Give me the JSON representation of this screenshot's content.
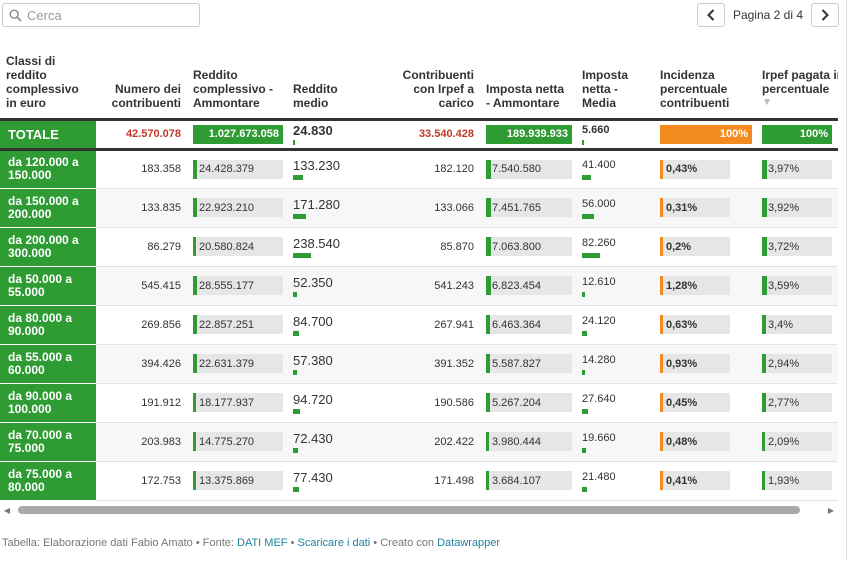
{
  "search": {
    "placeholder": "Cerca"
  },
  "pager": {
    "label": "Pagina 2 di 4"
  },
  "headers": {
    "classi": "Classi di reddito complessivo in euro",
    "numero": "Numero dei contribuenti",
    "reddito_ammontare": "Reddito complessivo - Ammontare",
    "reddito_medio": "Reddito medio",
    "contribuenti_irpef": "Contribuenti con Irpef a carico",
    "imposta_ammontare": "Imposta netta - Ammontare",
    "imposta_media": "Imposta netta - Media",
    "incidenza": "Incidenza percentuale contribuenti",
    "irpef_pagata": "Irpef pagata in percentuale",
    "sort_indicator": "▼"
  },
  "total": {
    "classe": "TOTALE",
    "numero": "42.570.078",
    "reddito_ammontare": "1.027.673.058",
    "reddito_medio": "24.830",
    "contribuenti_irpef": "33.540.428",
    "imposta_ammontare": "189.939.933",
    "imposta_media": "5.660",
    "incidenza": "100%",
    "irpef_pagata": "100%"
  },
  "rows": [
    {
      "classe": "da 120.000 a 150.000",
      "numero": "183.358",
      "reddito_ammontare": "24.428.379",
      "reddito_ammontare_frac": 0.024,
      "reddito_medio": "133.230",
      "reddito_medio_frac": 0.56,
      "contribuenti_irpef": "182.120",
      "imposta_ammontare": "7.540.580",
      "imposta_ammontare_frac": 0.04,
      "imposta_media": "41.400",
      "imposta_media_frac": 0.5,
      "incidenza": "0,43%",
      "incidenza_frac": 0.0043,
      "irpef_pagata": "3,97%",
      "irpef_pagata_frac": 0.0397
    },
    {
      "classe": "da 150.000 a 200.000",
      "numero": "133.835",
      "reddito_ammontare": "22.923.210",
      "reddito_ammontare_frac": 0.022,
      "reddito_medio": "171.280",
      "reddito_medio_frac": 0.72,
      "contribuenti_irpef": "133.066",
      "imposta_ammontare": "7.451.765",
      "imposta_ammontare_frac": 0.039,
      "imposta_media": "56.000",
      "imposta_media_frac": 0.68,
      "incidenza": "0,31%",
      "incidenza_frac": 0.0031,
      "irpef_pagata": "3,92%",
      "irpef_pagata_frac": 0.0392
    },
    {
      "classe": "da 200.000 a 300.000",
      "numero": "86.279",
      "reddito_ammontare": "20.580.824",
      "reddito_ammontare_frac": 0.02,
      "reddito_medio": "238.540",
      "reddito_medio_frac": 1.0,
      "contribuenti_irpef": "85.870",
      "imposta_ammontare": "7.063.800",
      "imposta_ammontare_frac": 0.037,
      "imposta_media": "82.260",
      "imposta_media_frac": 1.0,
      "incidenza": "0,2%",
      "incidenza_frac": 0.002,
      "irpef_pagata": "3,72%",
      "irpef_pagata_frac": 0.0372
    },
    {
      "classe": "da 50.000 a 55.000",
      "numero": "545.415",
      "reddito_ammontare": "28.555.177",
      "reddito_ammontare_frac": 0.028,
      "reddito_medio": "52.350",
      "reddito_medio_frac": 0.22,
      "contribuenti_irpef": "541.243",
      "imposta_ammontare": "6.823.454",
      "imposta_ammontare_frac": 0.036,
      "imposta_media": "12.610",
      "imposta_media_frac": 0.15,
      "incidenza": "1,28%",
      "incidenza_frac": 0.0128,
      "irpef_pagata": "3,59%",
      "irpef_pagata_frac": 0.0359
    },
    {
      "classe": "da 80.000 a 90.000",
      "numero": "269.856",
      "reddito_ammontare": "22.857.251",
      "reddito_ammontare_frac": 0.022,
      "reddito_medio": "84.700",
      "reddito_medio_frac": 0.36,
      "contribuenti_irpef": "267.941",
      "imposta_ammontare": "6.463.364",
      "imposta_ammontare_frac": 0.034,
      "imposta_media": "24.120",
      "imposta_media_frac": 0.29,
      "incidenza": "0,63%",
      "incidenza_frac": 0.0063,
      "irpef_pagata": "3,4%",
      "irpef_pagata_frac": 0.034
    },
    {
      "classe": "da 55.000 a 60.000",
      "numero": "394.426",
      "reddito_ammontare": "22.631.379",
      "reddito_ammontare_frac": 0.022,
      "reddito_medio": "57.380",
      "reddito_medio_frac": 0.24,
      "contribuenti_irpef": "391.352",
      "imposta_ammontare": "5.587.827",
      "imposta_ammontare_frac": 0.029,
      "imposta_media": "14.280",
      "imposta_media_frac": 0.17,
      "incidenza": "0,93%",
      "incidenza_frac": 0.0093,
      "irpef_pagata": "2,94%",
      "irpef_pagata_frac": 0.0294
    },
    {
      "classe": "da 90.000 a 100.000",
      "numero": "191.912",
      "reddito_ammontare": "18.177.937",
      "reddito_ammontare_frac": 0.018,
      "reddito_medio": "94.720",
      "reddito_medio_frac": 0.4,
      "contribuenti_irpef": "190.586",
      "imposta_ammontare": "5.267.204",
      "imposta_ammontare_frac": 0.028,
      "imposta_media": "27.640",
      "imposta_media_frac": 0.34,
      "incidenza": "0,45%",
      "incidenza_frac": 0.0045,
      "irpef_pagata": "2,77%",
      "irpef_pagata_frac": 0.0277
    },
    {
      "classe": "da 70.000 a 75.000",
      "numero": "203.983",
      "reddito_ammontare": "14.775.270",
      "reddito_ammontare_frac": 0.014,
      "reddito_medio": "72.430",
      "reddito_medio_frac": 0.3,
      "contribuenti_irpef": "202.422",
      "imposta_ammontare": "3.980.444",
      "imposta_ammontare_frac": 0.021,
      "imposta_media": "19.660",
      "imposta_media_frac": 0.24,
      "incidenza": "0,48%",
      "incidenza_frac": 0.0048,
      "irpef_pagata": "2,09%",
      "irpef_pagata_frac": 0.0209
    },
    {
      "classe": "da 75.000 a 80.000",
      "numero": "172.753",
      "reddito_ammontare": "13.375.869",
      "reddito_ammontare_frac": 0.013,
      "reddito_medio": "77.430",
      "reddito_medio_frac": 0.32,
      "contribuenti_irpef": "171.498",
      "imposta_ammontare": "3.684.107",
      "imposta_ammontare_frac": 0.019,
      "imposta_media": "21.480",
      "imposta_media_frac": 0.26,
      "incidenza": "0,41%",
      "incidenza_frac": 0.0041,
      "irpef_pagata": "1,93%",
      "irpef_pagata_frac": 0.0193
    }
  ],
  "footer": {
    "prefix": "Tabella: Elaborazione dati Fabio Amato • Fonte: ",
    "source_link": "DATI MEF",
    "sep1": " • ",
    "download_link": "Scaricare i dati",
    "sep2": " • Creato con ",
    "tool_link": "Datawrapper"
  },
  "colors": {
    "green": "#2e9b33",
    "orange": "#f48b1e",
    "red": "#c0392b",
    "link": "#1d81a2"
  }
}
